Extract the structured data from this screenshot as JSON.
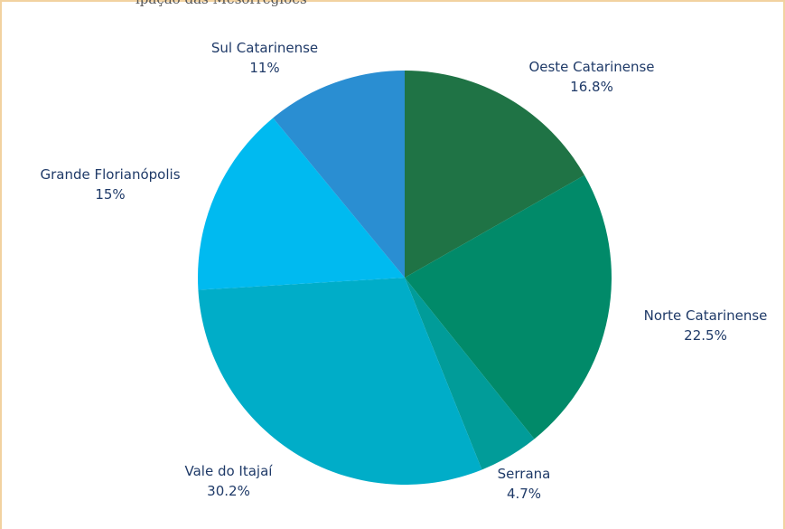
{
  "header": {
    "partial_title": "ipação das Mesorregiões"
  },
  "chart_data": {
    "type": "pie",
    "slices": [
      {
        "label": "Oeste Catarinense",
        "value": 16.8,
        "display": "16.8%",
        "color": "#1f7345"
      },
      {
        "label": "Norte Catarinense",
        "value": 22.5,
        "display": "22.5%",
        "color": "#018a69"
      },
      {
        "label": "Serrana",
        "value": 4.7,
        "display": "4.7%",
        "color": "#019c99"
      },
      {
        "label": "Vale do Itajaí",
        "value": 30.2,
        "display": "30.2%",
        "color": "#00adc8"
      },
      {
        "label": "Grande Florianópolis",
        "value": 15.0,
        "display": "15%",
        "color": "#00baf0"
      },
      {
        "label": "Sul Catarinense",
        "value": 11.0,
        "display": "11%",
        "color": "#2a8ed2"
      }
    ]
  }
}
